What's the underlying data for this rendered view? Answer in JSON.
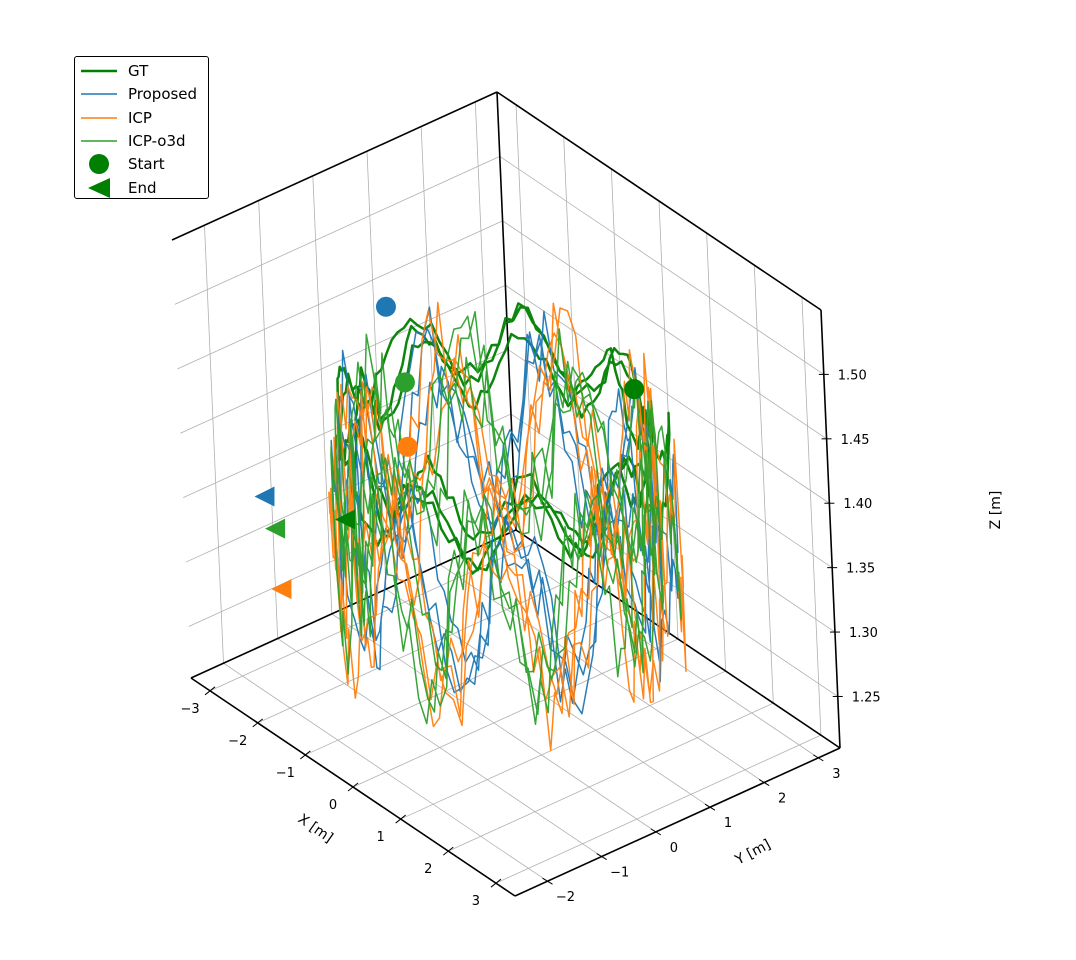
{
  "chart_data": {
    "type": "line3d",
    "axes": {
      "x": {
        "label": "X [m]",
        "ticks": [
          "−3",
          "−2",
          "−1",
          "0",
          "1",
          "2",
          "3"
        ],
        "range": [
          -3.4,
          3.4
        ]
      },
      "y": {
        "label": "Y [m]",
        "ticks": [
          "−2",
          "−1",
          "0",
          "1",
          "2",
          "3"
        ],
        "range": [
          -2.6,
          3.4
        ]
      },
      "z": {
        "label": "Z [m]",
        "ticks": [
          "1.25",
          "1.30",
          "1.35",
          "1.40",
          "1.45",
          "1.50"
        ],
        "range": [
          1.21,
          1.55
        ]
      }
    },
    "grid": true,
    "legend_position": "top-left",
    "legend": [
      {
        "label": "GT",
        "kind": "line",
        "color": "#008000",
        "width": 2.5
      },
      {
        "label": "Proposed",
        "kind": "line",
        "color": "#1f77b4",
        "width": 1.5
      },
      {
        "label": "ICP",
        "kind": "line",
        "color": "#ff7f0e",
        "width": 1.5
      },
      {
        "label": "ICP-o3d",
        "kind": "line",
        "color": "#2ca02c",
        "width": 1.5
      },
      {
        "label": "Start",
        "kind": "circle",
        "color": "#008000"
      },
      {
        "label": "End",
        "kind": "triangle-left",
        "color": "#008000"
      }
    ],
    "series": [
      {
        "name": "GT",
        "color": "#008000",
        "path": "ring",
        "radius": 2.3,
        "z_mean": 1.42,
        "z_amp": 0.025,
        "noise": 0.008,
        "start": [
          0.6,
          2.3,
          1.44
        ],
        "end": [
          -0.4,
          -2.2,
          1.4
        ]
      },
      {
        "name": "Proposed",
        "color": "#1f77b4",
        "path": "ring",
        "radius": 2.35,
        "z_mean": 1.36,
        "z_amp": 0.06,
        "noise": 0.03,
        "start": [
          -2.3,
          0.3,
          1.47
        ],
        "end": [
          -2.0,
          -2.3,
          1.38
        ]
      },
      {
        "name": "ICP",
        "color": "#ff7f0e",
        "path": "ring",
        "radius": 2.4,
        "z_mean": 1.35,
        "z_amp": 0.07,
        "noise": 0.04,
        "start": [
          -2.2,
          0.5,
          1.36
        ],
        "end": [
          -1.6,
          -2.4,
          1.32
        ]
      },
      {
        "name": "ICP-o3d",
        "color": "#2ca02c",
        "path": "ring",
        "radius": 2.35,
        "z_mean": 1.36,
        "z_amp": 0.06,
        "noise": 0.035,
        "start": [
          -2.2,
          0.5,
          1.41
        ],
        "end": [
          -1.8,
          -2.3,
          1.36
        ]
      }
    ]
  }
}
